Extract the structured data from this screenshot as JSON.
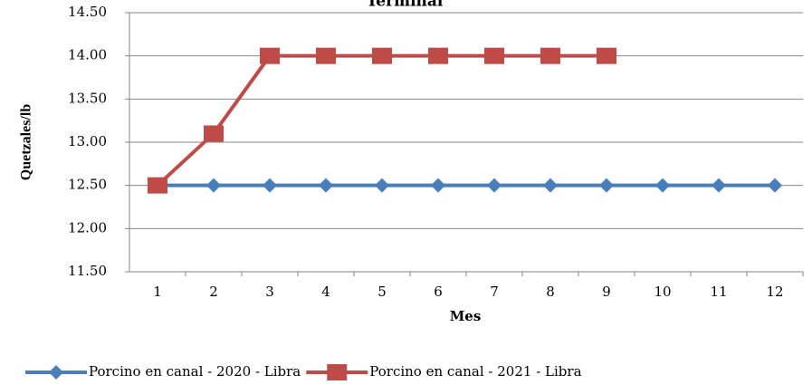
{
  "chart_data": {
    "type": "line",
    "title": "Terminal",
    "ylabel": "Quetzales/lb",
    "xlabel": "Mes",
    "categories": [
      "1",
      "2",
      "3",
      "4",
      "5",
      "6",
      "7",
      "8",
      "9",
      "10",
      "11",
      "12"
    ],
    "series": [
      {
        "name": "Porcino en canal - 2020 - Libra",
        "color": "#4a7ebb",
        "marker": "diamond",
        "values": [
          12.5,
          12.5,
          12.5,
          12.5,
          12.5,
          12.5,
          12.5,
          12.5,
          12.5,
          12.5,
          12.5,
          12.5
        ]
      },
      {
        "name": "Porcino en canal - 2021 - Libra",
        "color": "#be4b48",
        "marker": "square",
        "values": [
          12.5,
          13.1,
          14.0,
          14.0,
          14.0,
          14.0,
          14.0,
          14.0,
          14.0,
          null,
          null,
          null
        ]
      }
    ],
    "ylim": [
      11.5,
      14.5
    ],
    "yticks": [
      {
        "value": 11.5,
        "label": "11.50"
      },
      {
        "value": 12.0,
        "label": "12.00"
      },
      {
        "value": 12.5,
        "label": "12.50"
      },
      {
        "value": 13.0,
        "label": "13.00"
      },
      {
        "value": 13.5,
        "label": "13.50"
      },
      {
        "value": 14.0,
        "label": "14.00"
      },
      {
        "value": 14.5,
        "label": "14.50"
      }
    ],
    "grid": true,
    "legend": "bottom"
  }
}
